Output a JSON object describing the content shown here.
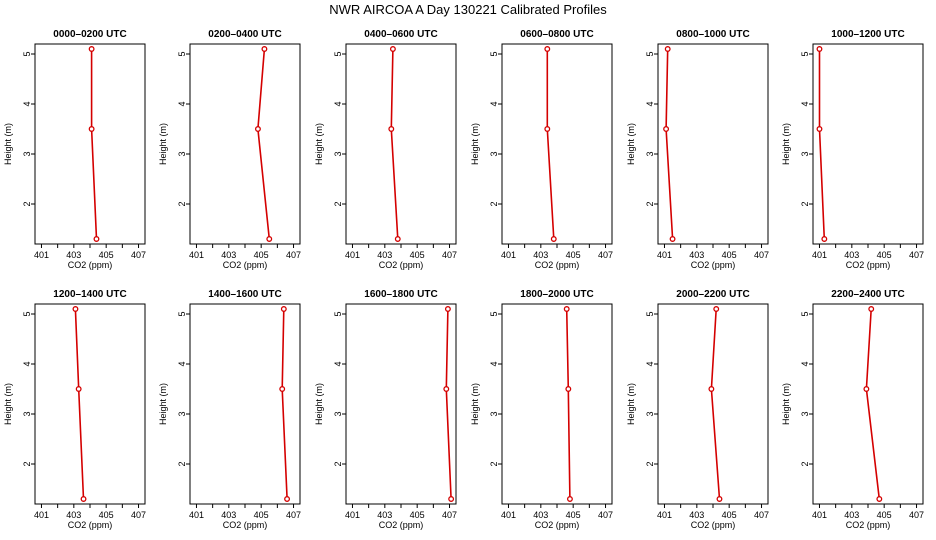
{
  "figure": {
    "title": "NWR AIRCOA A  Day 130221  Calibrated Profiles"
  },
  "colors": {
    "series_line": "#d40000",
    "marker_edge": "#d40000",
    "frame": "#000000"
  },
  "chart_data": [
    {
      "type": "line",
      "title": "0000–0200 UTC",
      "xlabel": "CO2 (ppm)",
      "ylabel": "Height (m)",
      "xlim": [
        400.6,
        407.4
      ],
      "ylim": [
        1.2,
        5.2
      ],
      "xticks": [
        401,
        403,
        405,
        407
      ],
      "yticks": [
        2,
        3,
        4,
        5
      ],
      "series": [
        {
          "x": [
            404.4,
            404.1,
            404.1
          ],
          "y": [
            1.3,
            3.5,
            5.1
          ]
        }
      ]
    },
    {
      "type": "line",
      "title": "0200–0400 UTC",
      "xlabel": "CO2 (ppm)",
      "ylabel": "Height (m)",
      "xlim": [
        400.6,
        407.4
      ],
      "ylim": [
        1.2,
        5.2
      ],
      "xticks": [
        401,
        403,
        405,
        407
      ],
      "yticks": [
        2,
        3,
        4,
        5
      ],
      "series": [
        {
          "x": [
            405.5,
            404.8,
            405.2
          ],
          "y": [
            1.3,
            3.5,
            5.1
          ]
        }
      ]
    },
    {
      "type": "line",
      "title": "0400–0600 UTC",
      "xlabel": "CO2 (ppm)",
      "ylabel": "Height (m)",
      "xlim": [
        400.6,
        407.4
      ],
      "ylim": [
        1.2,
        5.2
      ],
      "xticks": [
        401,
        403,
        405,
        407
      ],
      "yticks": [
        2,
        3,
        4,
        5
      ],
      "series": [
        {
          "x": [
            403.8,
            403.4,
            403.5
          ],
          "y": [
            1.3,
            3.5,
            5.1
          ]
        }
      ]
    },
    {
      "type": "line",
      "title": "0600–0800 UTC",
      "xlabel": "CO2 (ppm)",
      "ylabel": "Height (m)",
      "xlim": [
        400.6,
        407.4
      ],
      "ylim": [
        1.2,
        5.2
      ],
      "xticks": [
        401,
        403,
        405,
        407
      ],
      "yticks": [
        2,
        3,
        4,
        5
      ],
      "series": [
        {
          "x": [
            403.8,
            403.4,
            403.4
          ],
          "y": [
            1.3,
            3.5,
            5.1
          ]
        }
      ]
    },
    {
      "type": "line",
      "title": "0800–1000 UTC",
      "xlabel": "CO2 (ppm)",
      "ylabel": "Height (m)",
      "xlim": [
        400.6,
        407.4
      ],
      "ylim": [
        1.2,
        5.2
      ],
      "xticks": [
        401,
        403,
        405,
        407
      ],
      "yticks": [
        2,
        3,
        4,
        5
      ],
      "series": [
        {
          "x": [
            401.5,
            401.1,
            401.2
          ],
          "y": [
            1.3,
            3.5,
            5.1
          ]
        }
      ]
    },
    {
      "type": "line",
      "title": "1000–1200 UTC",
      "xlabel": "CO2 (ppm)",
      "ylabel": "Height (m)",
      "xlim": [
        400.6,
        407.4
      ],
      "ylim": [
        1.2,
        5.2
      ],
      "xticks": [
        401,
        403,
        405,
        407
      ],
      "yticks": [
        2,
        3,
        4,
        5
      ],
      "series": [
        {
          "x": [
            401.3,
            401.0,
            401.0
          ],
          "y": [
            1.3,
            3.5,
            5.1
          ]
        }
      ]
    },
    {
      "type": "line",
      "title": "1200–1400 UTC",
      "xlabel": "CO2 (ppm)",
      "ylabel": "Height (m)",
      "xlim": [
        400.6,
        407.4
      ],
      "ylim": [
        1.2,
        5.2
      ],
      "xticks": [
        401,
        403,
        405,
        407
      ],
      "yticks": [
        2,
        3,
        4,
        5
      ],
      "series": [
        {
          "x": [
            403.6,
            403.3,
            403.1
          ],
          "y": [
            1.3,
            3.5,
            5.1
          ]
        }
      ]
    },
    {
      "type": "line",
      "title": "1400–1600 UTC",
      "xlabel": "CO2 (ppm)",
      "ylabel": "Height (m)",
      "xlim": [
        400.6,
        407.4
      ],
      "ylim": [
        1.2,
        5.2
      ],
      "xticks": [
        401,
        403,
        405,
        407
      ],
      "yticks": [
        2,
        3,
        4,
        5
      ],
      "series": [
        {
          "x": [
            406.6,
            406.3,
            406.4
          ],
          "y": [
            1.3,
            3.5,
            5.1
          ]
        }
      ]
    },
    {
      "type": "line",
      "title": "1600–1800 UTC",
      "xlabel": "CO2 (ppm)",
      "ylabel": "Height (m)",
      "xlim": [
        400.6,
        407.4
      ],
      "ylim": [
        1.2,
        5.2
      ],
      "xticks": [
        401,
        403,
        405,
        407
      ],
      "yticks": [
        2,
        3,
        4,
        5
      ],
      "series": [
        {
          "x": [
            407.1,
            406.8,
            406.9
          ],
          "y": [
            1.3,
            3.5,
            5.1
          ]
        }
      ]
    },
    {
      "type": "line",
      "title": "1800–2000 UTC",
      "xlabel": "CO2 (ppm)",
      "ylabel": "Height (m)",
      "xlim": [
        400.6,
        407.4
      ],
      "ylim": [
        1.2,
        5.2
      ],
      "xticks": [
        401,
        403,
        405,
        407
      ],
      "yticks": [
        2,
        3,
        4,
        5
      ],
      "series": [
        {
          "x": [
            404.8,
            404.7,
            404.6
          ],
          "y": [
            1.3,
            3.5,
            5.1
          ]
        }
      ]
    },
    {
      "type": "line",
      "title": "2000–2200 UTC",
      "xlabel": "CO2 (ppm)",
      "ylabel": "Height (m)",
      "xlim": [
        400.6,
        407.4
      ],
      "ylim": [
        1.2,
        5.2
      ],
      "xticks": [
        401,
        403,
        405,
        407
      ],
      "yticks": [
        2,
        3,
        4,
        5
      ],
      "series": [
        {
          "x": [
            404.4,
            403.9,
            404.2
          ],
          "y": [
            1.3,
            3.5,
            5.1
          ]
        }
      ]
    },
    {
      "type": "line",
      "title": "2200–2400 UTC",
      "xlabel": "CO2 (ppm)",
      "ylabel": "Height (m)",
      "xlim": [
        400.6,
        407.4
      ],
      "ylim": [
        1.2,
        5.2
      ],
      "xticks": [
        401,
        403,
        405,
        407
      ],
      "yticks": [
        2,
        3,
        4,
        5
      ],
      "series": [
        {
          "x": [
            404.7,
            403.9,
            404.2
          ],
          "y": [
            1.3,
            3.5,
            5.1
          ]
        }
      ]
    }
  ]
}
